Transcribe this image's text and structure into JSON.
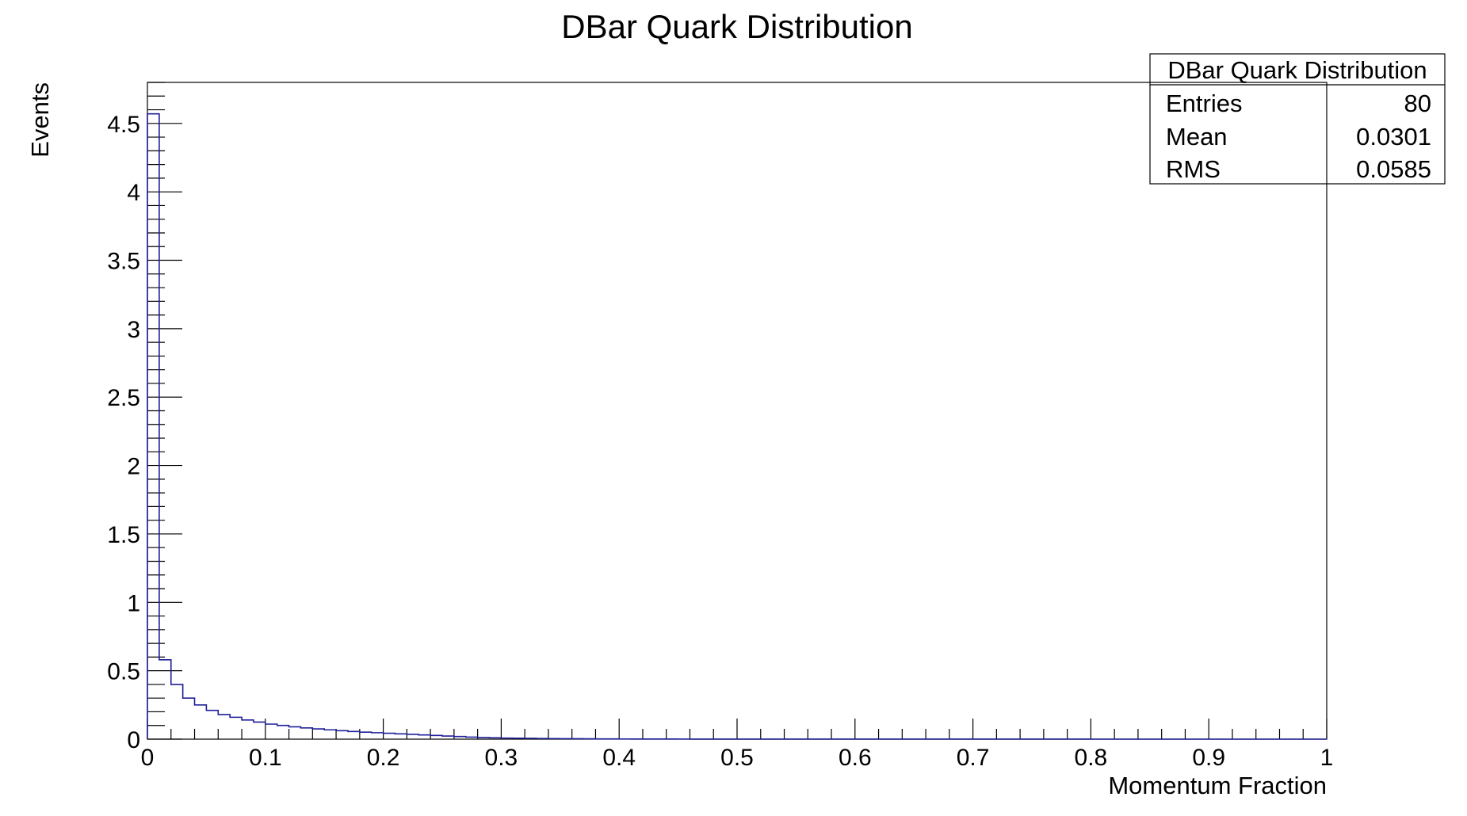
{
  "chart_data": {
    "type": "histogram",
    "title": "DBar Quark Distribution",
    "xlabel": "Momentum Fraction",
    "ylabel": "Events",
    "xlim": [
      0,
      1
    ],
    "ylim": [
      0,
      4.8
    ],
    "x_tick_labels": [
      "0",
      "0.1",
      "0.2",
      "0.3",
      "0.4",
      "0.5",
      "0.6",
      "0.7",
      "0.8",
      "0.9",
      "1"
    ],
    "y_tick_labels": [
      "0",
      "0.5",
      "1",
      "1.5",
      "2",
      "2.5",
      "3",
      "3.5",
      "4",
      "4.5"
    ],
    "grid": false,
    "line_color": "#1f1f9a",
    "bin_width": 0.01,
    "bin_contents": [
      4.57,
      0.58,
      0.4,
      0.3,
      0.25,
      0.21,
      0.18,
      0.16,
      0.14,
      0.125,
      0.11,
      0.1,
      0.09,
      0.082,
      0.075,
      0.068,
      0.062,
      0.056,
      0.051,
      0.047,
      0.043,
      0.039,
      0.035,
      0.031,
      0.027,
      0.023,
      0.019,
      0.015,
      0.012,
      0.01,
      0.008,
      0.007,
      0.006,
      0.005,
      0.004,
      0.0035,
      0.003,
      0.0025,
      0.002,
      0.0018,
      0.0015,
      0.0012,
      0.001,
      0.0009,
      0.0008,
      0.0007,
      0.0006,
      0.0005,
      0.0004,
      0.0003,
      0.0003,
      0.0002,
      0.0002,
      0.0002,
      0.0001,
      0.0001,
      0.0001,
      0.0001,
      0.0001,
      0.0001,
      0.0001,
      0.0001,
      0.0001,
      0.0001,
      0.0001,
      0.0001,
      0.0001,
      0.0001,
      0.0001,
      0.0001,
      0.0001,
      0.0001,
      0.0001,
      0.0001,
      0.0001,
      0.0001,
      0.0001,
      0.0001,
      0.0001,
      0.0001,
      0,
      0,
      0,
      0,
      0,
      0,
      0,
      0,
      0,
      0,
      0,
      0,
      0,
      0,
      0,
      0,
      0,
      0,
      0,
      0
    ],
    "legend_placement": "top-right",
    "stats_box": {
      "title": "DBar Quark Distribution",
      "rows": [
        {
          "label": "Entries",
          "value": "80"
        },
        {
          "label": "Mean",
          "value": "0.0301"
        },
        {
          "label": "RMS",
          "value": "0.0585"
        }
      ]
    }
  }
}
